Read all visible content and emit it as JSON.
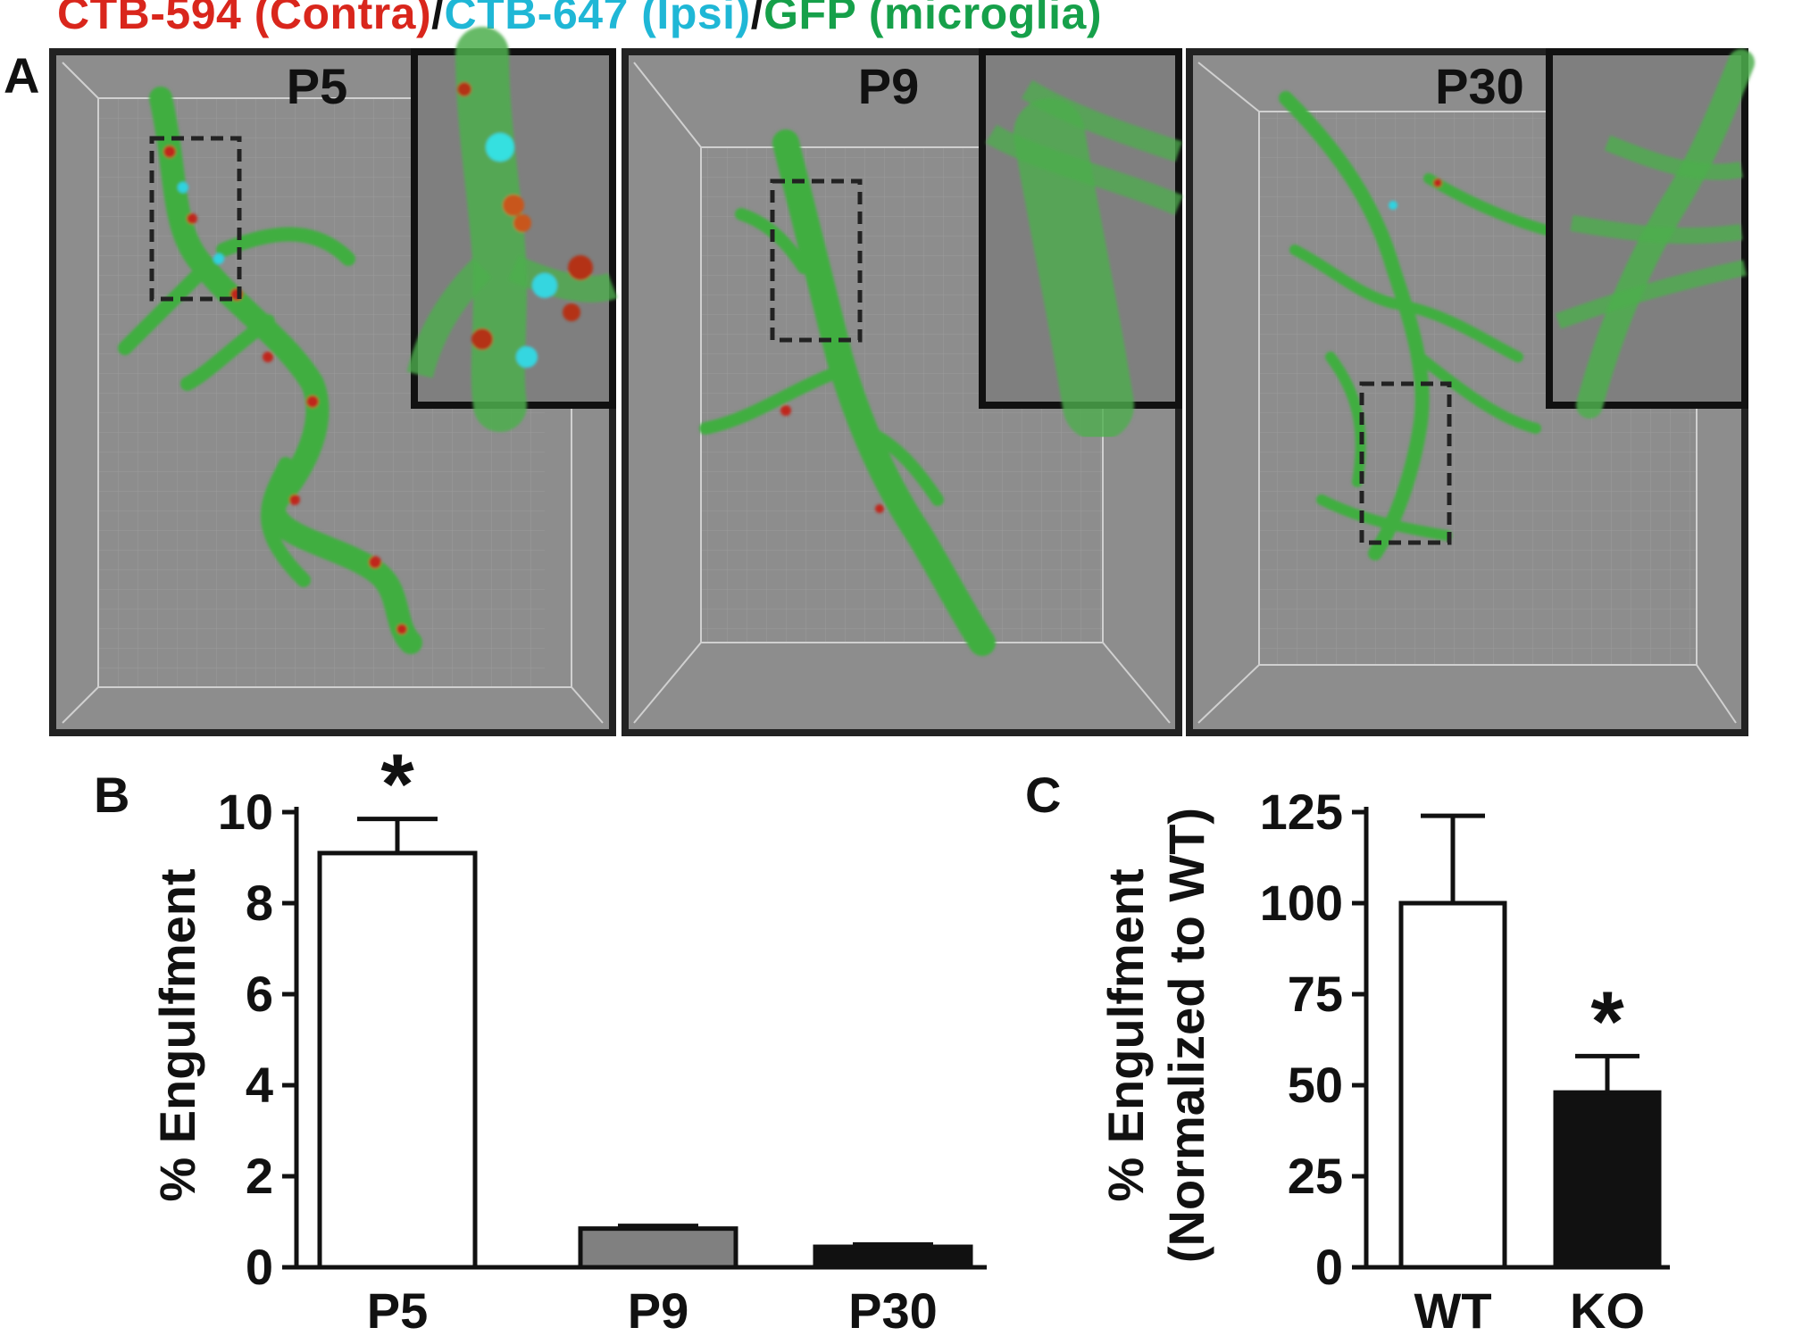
{
  "header": {
    "contra_label": "CTB-594 (Contra)",
    "ipsi_label": "CTB-647 (Ipsi)",
    "microglia_label": "GFP (microglia)",
    "separator": "/",
    "colors": {
      "contra": "#d9261c",
      "ipsi": "#1fb7d6",
      "microglia": "#16a04a"
    }
  },
  "panel_a": {
    "letter": "A",
    "images": [
      {
        "label": "P5"
      },
      {
        "label": "P9"
      },
      {
        "label": "P30"
      }
    ]
  },
  "chart_data": [
    {
      "panel_letter": "B",
      "type": "bar",
      "categories": [
        "P5",
        "P9",
        "P30"
      ],
      "values": [
        9.1,
        0.85,
        0.45
      ],
      "errors": [
        0.75,
        0.06,
        0.05
      ],
      "colors": [
        "#ffffff",
        "#808080",
        "#111111"
      ],
      "significance": [
        "*",
        "",
        ""
      ],
      "ylabel": "% Engulfment",
      "xlabel": "",
      "ylim": [
        0,
        10
      ],
      "yticks": [
        0,
        2,
        4,
        6,
        8,
        10
      ]
    },
    {
      "panel_letter": "C",
      "type": "bar",
      "categories": [
        "WT",
        "KO"
      ],
      "values": [
        100,
        48
      ],
      "errors": [
        24,
        10
      ],
      "colors": [
        "#ffffff",
        "#111111"
      ],
      "significance": [
        "",
        "*"
      ],
      "ylabel": "% Engulfment",
      "ylabel2": "(Normalized to WT)",
      "xlabel": "",
      "ylim": [
        0,
        125
      ],
      "yticks": [
        0,
        25,
        50,
        75,
        100,
        125
      ]
    }
  ]
}
